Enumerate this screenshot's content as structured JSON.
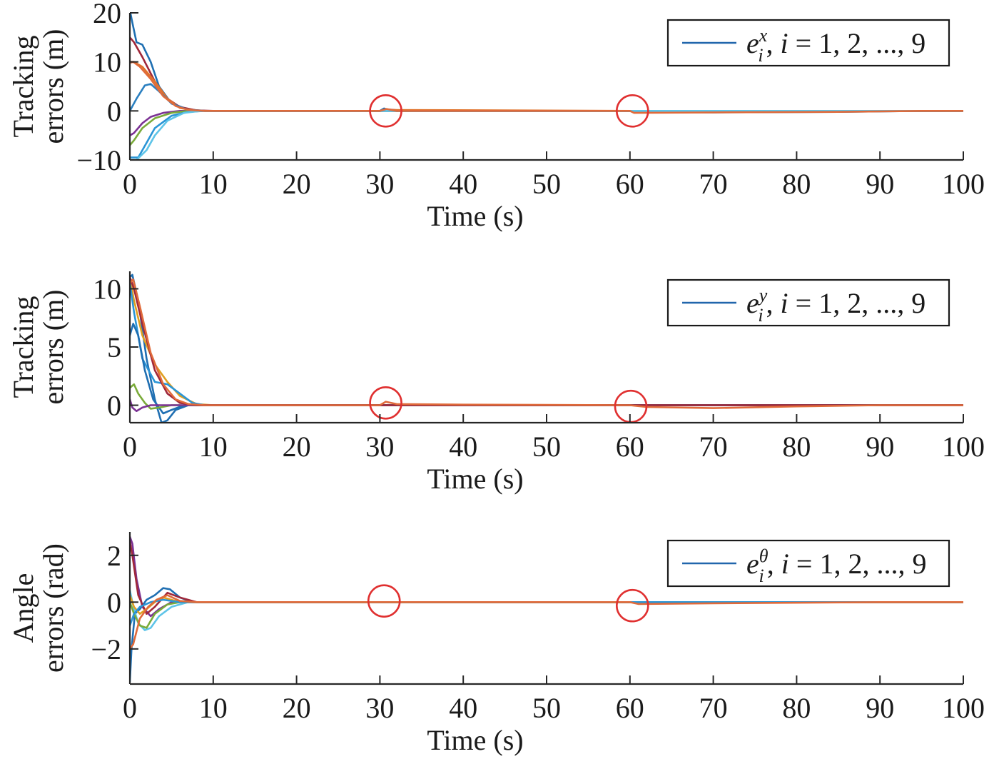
{
  "chart_data": [
    {
      "type": "line",
      "xlabel": "Time (s)",
      "ylabel": [
        "Tracking",
        "errors (m)"
      ],
      "xlim": [
        0,
        100
      ],
      "ylim": [
        -10,
        20
      ],
      "xticks": [
        0,
        10,
        20,
        30,
        40,
        50,
        60,
        70,
        80,
        90,
        100
      ],
      "yticks": [
        -10,
        0,
        10,
        20
      ],
      "yticklabels": [
        "−10",
        "0",
        "10",
        "20"
      ],
      "legend": {
        "position": "top-right",
        "symbol": "e",
        "superscript": "x",
        "subscript": "i",
        "rest": ", i = 1, 2, ..., 9",
        "color": "#2166ac"
      },
      "markers": [
        {
          "x": 30.7,
          "y": 0,
          "color": "#e03030"
        },
        {
          "x": 60.3,
          "y": 0,
          "color": "#e03030"
        }
      ],
      "series": [
        {
          "color": "#1f6fb2",
          "x": [
            0,
            0.3,
            0.8,
            1.5,
            2.5,
            3.5,
            5,
            7,
            9,
            12,
            30,
            30.5,
            31,
            32,
            35,
            60,
            61,
            70,
            85,
            95,
            100
          ],
          "y": [
            20.5,
            18,
            14,
            13.5,
            10,
            5,
            1.5,
            0.3,
            0,
            0,
            0,
            0.5,
            0.2,
            0,
            0,
            0,
            -0.2,
            -0.3,
            -0.2,
            0,
            0
          ]
        },
        {
          "color": "#a0283a",
          "x": [
            0,
            0.5,
            1.5,
            3,
            4.5,
            6,
            8,
            10,
            30,
            31,
            33,
            60,
            70,
            100
          ],
          "y": [
            15,
            14,
            11,
            6,
            2.5,
            0.8,
            0.1,
            0,
            0,
            0.3,
            0,
            0,
            -0.2,
            0
          ]
        },
        {
          "color": "#e0722a",
          "x": [
            0,
            0.5,
            1.5,
            3,
            4.5,
            6,
            8,
            10,
            30,
            31,
            60,
            100
          ],
          "y": [
            10,
            10,
            9,
            6,
            2.5,
            0.6,
            0,
            0,
            0,
            0.2,
            0,
            0
          ]
        },
        {
          "color": "#2a7fc0",
          "x": [
            0,
            0.8,
            1.8,
            2.5,
            3.5,
            5,
            7,
            9,
            100
          ],
          "y": [
            0,
            2.5,
            5.2,
            5.5,
            4,
            1.5,
            0.2,
            0,
            0
          ]
        },
        {
          "color": "#7b3294",
          "x": [
            0,
            0.5,
            1.5,
            2.5,
            4,
            6,
            8,
            100
          ],
          "y": [
            -5,
            -4.5,
            -2.5,
            -1.2,
            -0.4,
            0,
            0,
            0
          ]
        },
        {
          "color": "#7aab3a",
          "x": [
            0,
            0.5,
            1.5,
            3,
            5,
            7,
            9,
            100
          ],
          "y": [
            -7,
            -6,
            -3.5,
            -1.5,
            -0.4,
            0,
            0,
            0
          ]
        },
        {
          "color": "#2a95d6",
          "x": [
            0,
            1,
            2,
            3,
            5,
            7,
            9,
            100
          ],
          "y": [
            -9.5,
            -9.5,
            -6.5,
            -3.5,
            -1,
            -0.2,
            0,
            0
          ]
        },
        {
          "color": "#5ec4e8",
          "x": [
            0,
            0.8,
            2,
            3,
            4.5,
            6.5,
            8.5,
            100
          ],
          "y": [
            -10,
            -10,
            -8,
            -5,
            -2,
            -0.4,
            0,
            0
          ]
        },
        {
          "color": "#e06a3a",
          "x": [
            0,
            0.4,
            1.2,
            2.5,
            4,
            5.5,
            7,
            9,
            30,
            30.8,
            32,
            60,
            60.5,
            70,
            85,
            95,
            100
          ],
          "y": [
            9.8,
            10,
            9,
            6.5,
            3,
            1,
            0.2,
            0,
            0,
            0.4,
            0,
            0,
            -0.4,
            -0.3,
            -0.2,
            0,
            0
          ]
        }
      ]
    },
    {
      "type": "line",
      "xlabel": "Time (s)",
      "ylabel": [
        "Tracking",
        "errors (m)"
      ],
      "xlim": [
        0,
        100
      ],
      "ylim": [
        -1.5,
        11.5
      ],
      "xticks": [
        0,
        10,
        20,
        30,
        40,
        50,
        60,
        70,
        80,
        90,
        100
      ],
      "yticks": [
        0,
        5,
        10
      ],
      "yticklabels": [
        "0",
        "5",
        "10"
      ],
      "legend": {
        "position": "top-right",
        "symbol": "e",
        "superscript": "y",
        "subscript": "i",
        "rest": ", i = 1, 2, ..., 9",
        "color": "#2166ac"
      },
      "markers": [
        {
          "x": 30.7,
          "y": 0.2,
          "color": "#e03030"
        },
        {
          "x": 60.1,
          "y": -0.1,
          "color": "#e03030"
        }
      ],
      "series": [
        {
          "color": "#1f6fb2",
          "x": [
            0,
            0.3,
            1,
            2,
            3,
            3.8,
            4.5,
            5.5,
            7,
            9,
            100
          ],
          "y": [
            11,
            11.2,
            9,
            4,
            0.5,
            -1.5,
            -1.3,
            -0.4,
            0,
            0,
            0
          ]
        },
        {
          "color": "#e0a020",
          "x": [
            0,
            0.5,
            1.5,
            3,
            4.5,
            6,
            8,
            10,
            100
          ],
          "y": [
            11,
            9,
            6,
            3.5,
            2,
            0.8,
            0.1,
            0,
            0
          ]
        },
        {
          "color": "#2a95d6",
          "x": [
            0,
            0.5,
            1.5,
            3,
            4.5,
            6,
            7.5,
            9,
            100
          ],
          "y": [
            10.5,
            8,
            4,
            2,
            1.8,
            1,
            0.2,
            0,
            0
          ]
        },
        {
          "color": "#1f6fb2",
          "x": [
            0,
            0.4,
            1,
            1.8,
            2.8,
            4,
            5,
            6.5,
            8,
            100
          ],
          "y": [
            6,
            7,
            6,
            3,
            0.5,
            -0.7,
            -0.4,
            0,
            0,
            0
          ]
        },
        {
          "color": "#7aab3a",
          "x": [
            0,
            0.5,
            1,
            1.8,
            2.5,
            3.5,
            5,
            7,
            100
          ],
          "y": [
            1.5,
            1.8,
            1,
            0.2,
            -0.3,
            -0.2,
            0,
            0,
            0
          ]
        },
        {
          "color": "#7b3294",
          "x": [
            0,
            0.3,
            0.8,
            1.5,
            2.5,
            4,
            100
          ],
          "y": [
            0.5,
            -0.2,
            -0.5,
            -0.2,
            0,
            0,
            0
          ]
        },
        {
          "color": "#a0283a",
          "x": [
            0,
            0.5,
            1.5,
            3,
            4.5,
            6,
            8,
            100
          ],
          "y": [
            11,
            10,
            7,
            3,
            1,
            0.2,
            0,
            0
          ]
        },
        {
          "color": "#e06a3a",
          "x": [
            0,
            0.4,
            1.2,
            2.5,
            4,
            5.5,
            7,
            9,
            30,
            30.7,
            32,
            40,
            60,
            62,
            70,
            80,
            90,
            100
          ],
          "y": [
            10.5,
            10.8,
            8.5,
            4.5,
            1.8,
            0.5,
            0.1,
            0,
            0,
            0.3,
            0.1,
            0.05,
            0,
            -0.15,
            -0.25,
            -0.1,
            0,
            0
          ]
        }
      ]
    },
    {
      "type": "line",
      "xlabel": "Time (s)",
      "ylabel": [
        "Angle",
        "errors (rad)"
      ],
      "xlim": [
        0,
        100
      ],
      "ylim": [
        -3.5,
        3
      ],
      "xticks": [
        0,
        10,
        20,
        30,
        40,
        50,
        60,
        70,
        80,
        90,
        100
      ],
      "yticks": [
        -2,
        0,
        2
      ],
      "yticklabels": [
        "−2",
        "0",
        "2"
      ],
      "legend": {
        "position": "top-right",
        "symbol": "e",
        "superscript": "θ",
        "subscript": "i",
        "rest": ", i = 1, 2, ..., 9",
        "color": "#2166ac"
      },
      "markers": [
        {
          "x": 30.5,
          "y": 0.05,
          "color": "#e03030"
        },
        {
          "x": 60.3,
          "y": -0.15,
          "color": "#e03030"
        }
      ],
      "series": [
        {
          "color": "#1f6fb2",
          "x": [
            0,
            0.2,
            0.6,
            1.2,
            2,
            3,
            4,
            4.8,
            6,
            7.5,
            9,
            100
          ],
          "y": [
            -3.4,
            -2,
            -0.5,
            -0.3,
            0.1,
            0.3,
            0.6,
            0.55,
            0.2,
            0,
            0,
            0
          ]
        },
        {
          "color": "#7b3294",
          "x": [
            0,
            0.3,
            0.8,
            1.5,
            2.5,
            3.5,
            5,
            7,
            100
          ],
          "y": [
            2.8,
            2.5,
            1,
            -0.2,
            -0.6,
            -0.3,
            0,
            0,
            0
          ]
        },
        {
          "color": "#a0283a",
          "x": [
            0,
            0.3,
            1,
            2,
            3,
            4.5,
            6,
            8,
            100
          ],
          "y": [
            2.6,
            2,
            0.3,
            -0.5,
            -0.2,
            0.4,
            0.2,
            0,
            0
          ]
        },
        {
          "color": "#5ec4e8",
          "x": [
            0,
            0.5,
            1,
            1.8,
            2.5,
            3.5,
            5,
            7,
            9,
            100
          ],
          "y": [
            0.5,
            -0.3,
            -0.9,
            -1.2,
            -1.1,
            -0.6,
            -0.2,
            0,
            0,
            0
          ]
        },
        {
          "color": "#7aab3a",
          "x": [
            0,
            0.5,
            1.2,
            2,
            3,
            4.5,
            6,
            8,
            100
          ],
          "y": [
            0,
            -0.5,
            -1,
            -1.1,
            -0.5,
            -0.1,
            0,
            0,
            0
          ]
        },
        {
          "color": "#e0a020",
          "x": [
            0,
            0.5,
            1.2,
            2,
            3,
            4,
            5.5,
            7,
            100
          ],
          "y": [
            0.3,
            -0.2,
            -0.5,
            -0.3,
            0,
            0.2,
            0.05,
            0,
            0
          ]
        },
        {
          "color": "#2a95d6",
          "x": [
            0,
            0.5,
            1.2,
            2.5,
            4,
            6,
            100
          ],
          "y": [
            -1,
            -0.5,
            -0.2,
            0,
            0.1,
            0,
            0
          ]
        },
        {
          "color": "#e06a3a",
          "x": [
            0,
            0.4,
            1.2,
            2.2,
            3.2,
            4.5,
            6,
            8,
            30,
            60,
            61,
            70,
            90,
            100
          ],
          "y": [
            -2,
            -1.8,
            -0.7,
            -0.2,
            0.1,
            0.3,
            0.05,
            0,
            0,
            0,
            -0.08,
            -0.05,
            0,
            0
          ]
        }
      ]
    }
  ]
}
